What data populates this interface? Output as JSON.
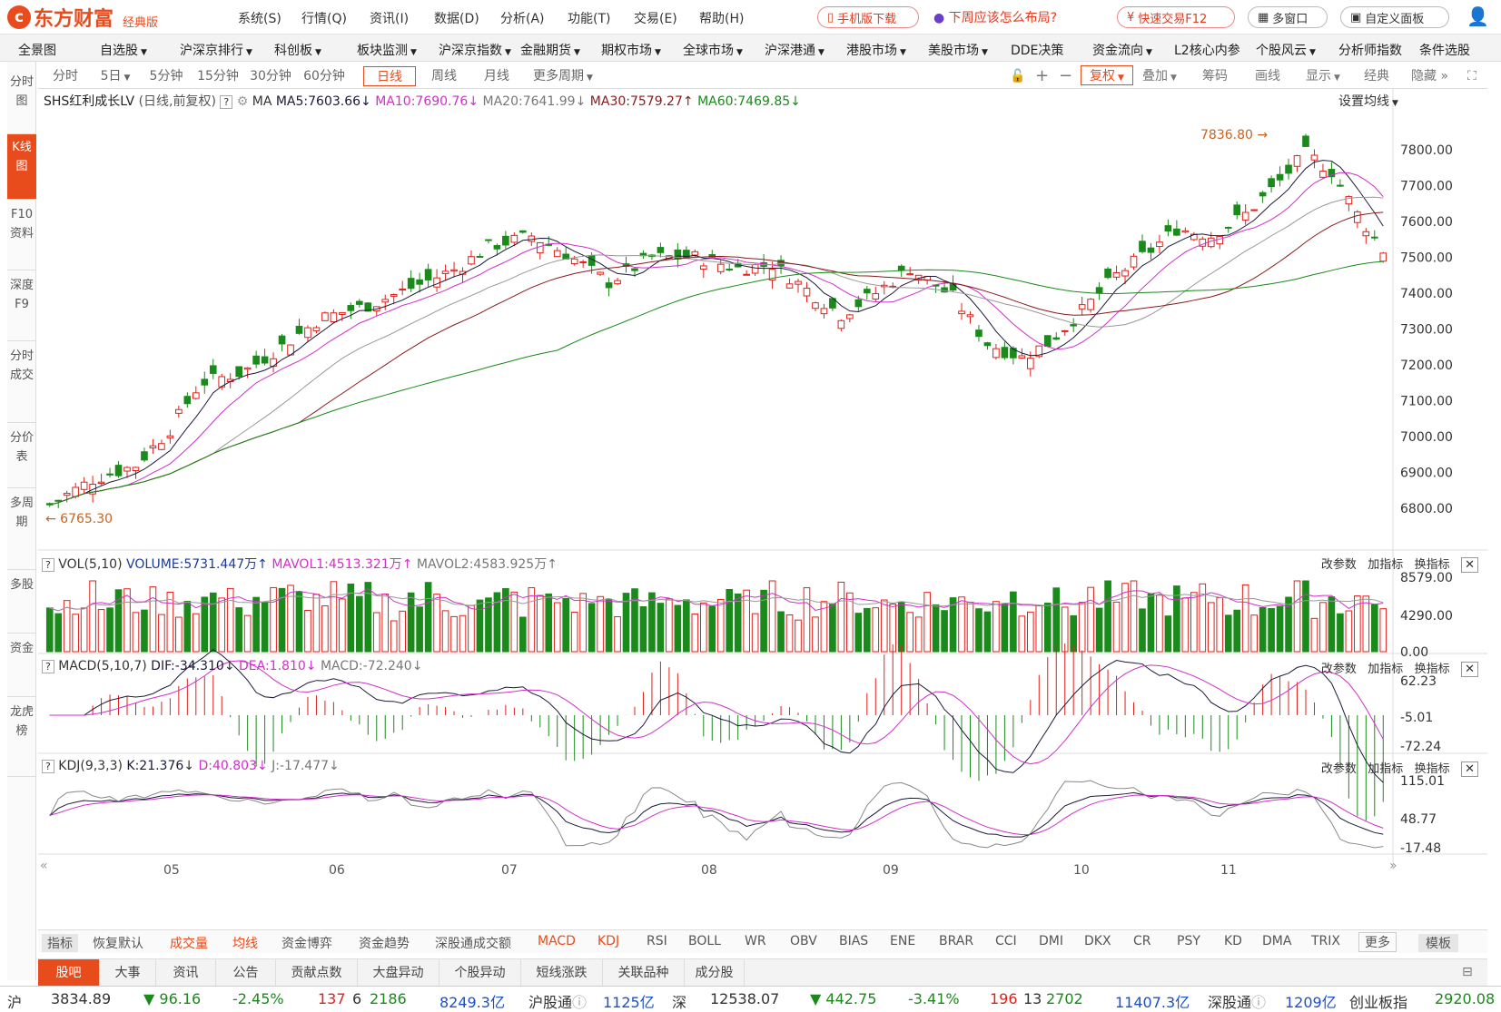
{
  "app": {
    "logo_text": "东方财富",
    "edition": "经典版"
  },
  "menu": [
    "系统(S)",
    "行情(Q)",
    "资讯(I)",
    "数据(D)",
    "分析(A)",
    "功能(T)",
    "交易(E)",
    "帮助(H)"
  ],
  "top_actions": {
    "mobile": "手机版下载",
    "promo": "下周应该怎么布局?",
    "quick_trade": "快速交易F12",
    "multi_window": "多窗口",
    "custom_panel": "自定义面板"
  },
  "nav": [
    "全景图",
    "自选股",
    "沪深京排行",
    "科创板",
    "板块监测",
    "沪深京指数",
    "金融期货",
    "期权市场",
    "全球市场",
    "沪深港通",
    "港股市场",
    "美股市场",
    "DDE决策",
    "资金流向",
    "L2核心内参",
    "个股风云",
    "分析师指数",
    "条件选股"
  ],
  "left_tabs": [
    "分时图",
    "K线图",
    "F10资料",
    "深度F9",
    "分时成交",
    "分价表",
    "多周期",
    "多股",
    "资金",
    "龙虎榜"
  ],
  "periods": [
    "分时",
    "5日",
    "5分钟",
    "15分钟",
    "30分钟",
    "60分钟",
    "日线",
    "周线",
    "月线",
    "更多周期"
  ],
  "active_period": "日线",
  "chart_tools": {
    "fuquan": "复权",
    "overlay": "叠加",
    "chips": "筹码",
    "draw": "画线",
    "display": "显示",
    "classic": "经典",
    "hide": "隐藏"
  },
  "main_legend": {
    "title": "SHS红利成长LV",
    "mode": "(日线,前复权)",
    "ma_label": "MA",
    "ma5": "MA5:7603.66",
    "ma10": "MA10:7690.76",
    "ma20": "MA20:7641.99",
    "ma30": "MA30:7579.27",
    "ma60": "MA60:7469.85",
    "set_ma": "设置均线"
  },
  "price_axis": [
    "7800.00",
    "7700.00",
    "7600.00",
    "7500.00",
    "7400.00",
    "7300.00",
    "7200.00",
    "7100.00",
    "7000.00",
    "6900.00",
    "6800.00"
  ],
  "annotations": {
    "high": "7836.80",
    "low": "6765.30"
  },
  "vol_legend": {
    "name": "VOL(5,10)",
    "volume": "VOLUME:5731.447万",
    "mavol1": "MAVOL1:4513.321万",
    "mavol2": "MAVOL2:4583.925万"
  },
  "vol_axis": [
    "8579.00",
    "4290.00",
    "0.00"
  ],
  "macd_legend": {
    "name": "MACD(5,10,7)",
    "dif": "DIF:-34.310",
    "dea": "DEA:1.810",
    "macd": "MACD:-72.240"
  },
  "macd_axis": [
    "62.23",
    "-5.01",
    "-72.24"
  ],
  "kdj_legend": {
    "name": "KDJ(9,3,3)",
    "k": "K:21.376",
    "d": "D:40.803",
    "j": "J:-17.477"
  },
  "kdj_axis": [
    "115.01",
    "48.77",
    "-17.48"
  ],
  "indicator_tools": [
    "改参数",
    "加指标",
    "换指标"
  ],
  "x_months": [
    "05",
    "06",
    "07",
    "08",
    "09",
    "10",
    "11"
  ],
  "indicator_tabs": [
    "指标",
    "恢复默认",
    "成交量",
    "均线",
    "资金博弈",
    "资金趋势",
    "深股通成交额",
    "MACD",
    "KDJ",
    "RSI",
    "BOLL",
    "WR",
    "OBV",
    "BIAS",
    "ENE",
    "BRAR",
    "CCI",
    "DMI",
    "DKX",
    "CR",
    "PSY",
    "KD",
    "DMA",
    "TRIX",
    "更多",
    "模板"
  ],
  "bottom_tabs": [
    "股吧",
    "大事",
    "资讯",
    "公告",
    "贡献点数",
    "大盘异动",
    "个股异动",
    "短线涨跌",
    "关联品种",
    "成分股"
  ],
  "status": {
    "sh_label": "沪",
    "sh_index": "3834.89",
    "sh_change": "▼ 96.16",
    "sh_pct": "-2.45%",
    "sh_up": "137",
    "sh_flat": "6",
    "sh_down": "2186",
    "sh_amount": "8249.3亿",
    "hgt_label": "沪股通",
    "hgt_value": "1125亿",
    "sz_label": "深",
    "sz_index": "12538.07",
    "sz_change": "▼ 442.75",
    "sz_pct": "-3.41%",
    "sz_up": "196",
    "sz_flat": "13",
    "sz_down": "2702",
    "sz_amount": "11407.3亿",
    "sgt_label": "深股通",
    "sgt_value": "1209亿",
    "cyb_label": "创业板指",
    "cyb_value": "2920.08"
  },
  "colors": {
    "up": "#e0201a",
    "down": "#1a8a1a",
    "ma5": "#1a1a3a",
    "ma10": "#d030c8",
    "ma20": "#999999",
    "ma30": "#8a1a1a",
    "ma60": "#1a8a1a",
    "accent": "#e84b1c"
  }
}
